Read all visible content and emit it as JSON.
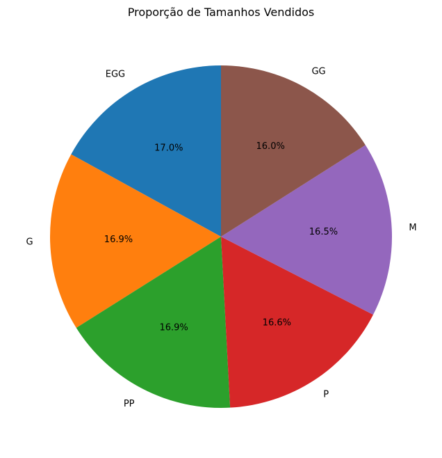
{
  "chart_data": {
    "type": "pie",
    "title": "Proporção de Tamanhos Vendidos",
    "start_angle_deg": 90,
    "direction": "counterclockwise",
    "slices": [
      {
        "label": "EGG",
        "value": 17.0,
        "pct_label": "17.0%",
        "color": "#1f77b4"
      },
      {
        "label": "G",
        "value": 16.9,
        "pct_label": "16.9%",
        "color": "#ff7f0e"
      },
      {
        "label": "PP",
        "value": 16.9,
        "pct_label": "16.9%",
        "color": "#2ca02c"
      },
      {
        "label": "P",
        "value": 16.6,
        "pct_label": "16.6%",
        "color": "#d62728"
      },
      {
        "label": "M",
        "value": 16.5,
        "pct_label": "16.5%",
        "color": "#9467bd"
      },
      {
        "label": "GG",
        "value": 16.0,
        "pct_label": "16.0%",
        "color": "#8c564b"
      }
    ]
  }
}
